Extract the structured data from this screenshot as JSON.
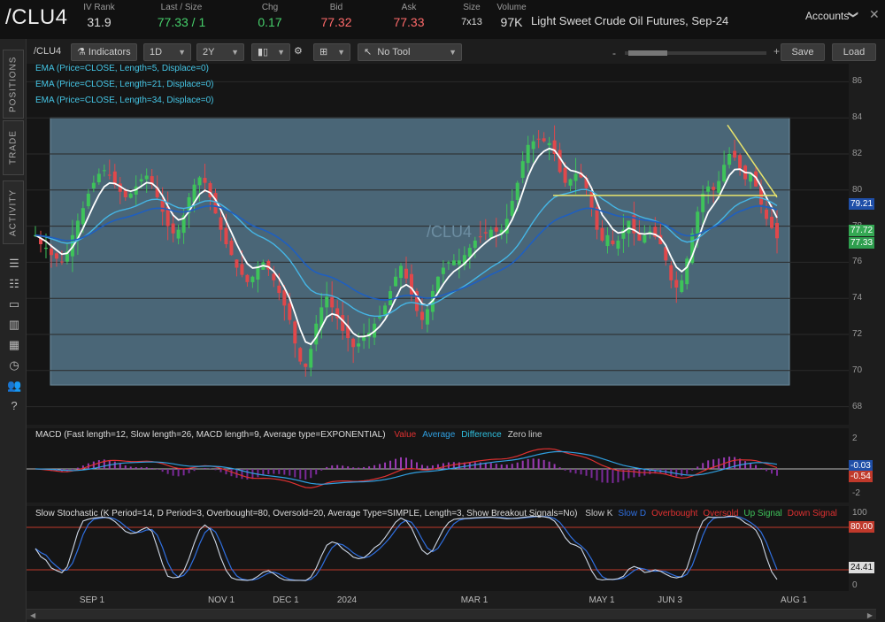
{
  "header": {
    "symbol": "/CLU4",
    "quotes": [
      {
        "label": "IV Rank",
        "value": "31.9",
        "cls": "",
        "x": 112
      },
      {
        "label": "Last / Size",
        "value": "77.33 / 1",
        "cls": "g",
        "x": 205
      },
      {
        "label": "Chg",
        "value": "0.17",
        "cls": "g",
        "x": 305
      },
      {
        "label": "Bid",
        "value": "77.32",
        "cls": "r",
        "x": 380
      },
      {
        "label": "Ask",
        "value": "77.33",
        "cls": "r",
        "x": 462
      },
      {
        "label": "Size",
        "value": "7x13",
        "cls": "s",
        "x": 533
      },
      {
        "label": "Volume",
        "value": "97K",
        "cls": "",
        "x": 578
      }
    ],
    "description": "Light Sweet Crude Oil Futures, Sep-24",
    "accounts_label": "Accounts",
    "close_glyph": "✕",
    "chevron_glyph": "❯"
  },
  "sidebar": {
    "tabs": [
      "POSITIONS",
      "TRADE",
      "ACTIVITY"
    ],
    "icons": [
      "list-icon",
      "list-lines-icon",
      "document-icon",
      "chart-icon",
      "grid-icon",
      "clock-icon",
      "people-icon",
      "help-icon"
    ],
    "icon_glyphs": [
      "☰",
      "☷",
      "▭",
      "▥",
      "▦",
      "◷",
      "👥",
      "?"
    ]
  },
  "toolbar": {
    "symbol": "/CLU4",
    "indicators": "Indicators",
    "interval": "1D",
    "range": "2Y",
    "style_glyph": "▮▯",
    "gear_glyph": "⚙",
    "draw_glyph": "⊞",
    "tool_glyph": "↖",
    "tool": "No Tool",
    "zoom_minus": "-",
    "zoom_plus": "+",
    "save": "Save",
    "load": "Load"
  },
  "price_pane": {
    "studies": [
      "EMA (Price=CLOSE, Length=5, Displace=0)",
      "EMA (Price=CLOSE, Length=21, Displace=0)",
      "EMA (Price=CLOSE, Length=34, Displace=0)"
    ],
    "watermark": "/CLU4",
    "y_ticks": [
      "86",
      "84",
      "82",
      "80",
      "78",
      "76",
      "74",
      "72",
      "70",
      "68"
    ],
    "price_plates": [
      {
        "text": "79.21",
        "color": "#1f4fa8",
        "value": 79.21
      },
      {
        "text": "77.72",
        "color": "#34a853",
        "value": 77.72
      },
      {
        "text": "77.33",
        "color": "#2e9e4e",
        "value": 77.33
      }
    ]
  },
  "macd_pane": {
    "title": "MACD (Fast length=12, Slow length=26, MACD length=9, Average type=EXPONENTIAL)",
    "legend": [
      {
        "label": "Value",
        "color": "#e03131"
      },
      {
        "label": "Average",
        "color": "#2f9fe0"
      },
      {
        "label": "Difference",
        "color": "#2fc0e0"
      },
      {
        "label": "Zero line",
        "color": "#cccccc"
      }
    ],
    "y_ticks": [
      "2",
      "0",
      "-2"
    ],
    "plates": [
      {
        "text": "-0.03",
        "color": "#1f4fa8"
      },
      {
        "text": "-0.54",
        "color": "#c0392b"
      }
    ]
  },
  "stoch_pane": {
    "title": "Slow Stochastic (K Period=14, D Period=3, Overbought=80, Oversold=20, Average Type=SIMPLE, Length=3, Show Breakout Signals=No)",
    "legend": [
      {
        "label": "Slow K",
        "color": "#cccccc"
      },
      {
        "label": "Slow D",
        "color": "#2f6fe0"
      },
      {
        "label": "Overbought",
        "color": "#e03131"
      },
      {
        "label": "Oversold",
        "color": "#e03131"
      },
      {
        "label": "Up Signal",
        "color": "#3ec35a"
      },
      {
        "label": "Down Signal",
        "color": "#e03131"
      }
    ],
    "y_ticks": [
      "100",
      "80.00",
      "20",
      "0"
    ],
    "plate": "24.41"
  },
  "x_axis": {
    "labels": [
      "SEP 1",
      "NOV 1",
      "DEC 1",
      "2024",
      "MAR 1",
      "MAY 1",
      "JUN 3",
      "AUG 1"
    ]
  },
  "chart_data": {
    "type": "candlestick",
    "symbol": "/CLU4",
    "description": "Light Sweet Crude Oil Futures, Sep-24",
    "interval": "1D",
    "range": "2Y",
    "y_range": [
      67,
      87
    ],
    "x_labels": [
      "SEP 1",
      "NOV 1",
      "DEC 1",
      "2024",
      "MAR 1",
      "MAY 1",
      "JUN 3",
      "AUG 1"
    ],
    "close_approx": [
      77.5,
      77,
      76.8,
      76.4,
      76.2,
      76.0,
      76.6,
      77.5,
      78.3,
      79.0,
      79.8,
      80.4,
      80.9,
      81.1,
      80.8,
      80.3,
      79.9,
      79.6,
      79.8,
      80.2,
      80.6,
      80.8,
      80.3,
      79.6,
      78.8,
      78.0,
      77.6,
      77.8,
      78.6,
      79.6,
      80.3,
      80.7,
      80.4,
      79.6,
      78.7,
      77.8,
      77.0,
      76.4,
      75.7,
      75.3,
      74.9,
      75.2,
      75.8,
      76.0,
      75.6,
      75.0,
      74.3,
      73.6,
      72.8,
      71.5,
      70.5,
      70.2,
      71.2,
      72.6,
      73.5,
      74.1,
      73.5,
      72.9,
      72.2,
      71.8,
      71.3,
      71.5,
      71.9,
      72.1,
      72.6,
      73.0,
      73.6,
      74.4,
      75.2,
      75.8,
      75.1,
      74.2,
      73.3,
      72.8,
      73.4,
      74.4,
      75.2,
      75.7,
      76.0,
      76.1,
      76.1,
      76.4,
      76.8,
      77.2,
      77.4,
      77.6,
      77.8,
      77.7,
      77.8,
      78.4,
      79.4,
      80.4,
      81.6,
      82.5,
      82.7,
      82.8,
      82.7,
      82.6,
      82.0,
      81.0,
      80.4,
      80.6,
      80.9,
      80.7,
      80.1,
      79.0,
      77.8,
      77.2,
      77.5,
      77.0,
      77.2,
      77.8,
      78.3,
      77.6,
      77.2,
      77.5,
      77.7,
      77.4,
      77.0,
      76.1,
      75.0,
      74.6,
      75.0,
      76.2,
      77.6,
      78.8,
      79.8,
      80.2,
      80.0,
      80.5,
      81.4,
      82.0,
      81.8,
      81.2,
      80.6,
      80.9,
      80.2,
      79.2,
      78.4,
      77.9,
      77.33
    ],
    "ema_periods": [
      5,
      21,
      34
    ],
    "resistance_line": 79.7,
    "channel_upper": [
      83.6,
      79.6
    ],
    "macd": {
      "value": -0.54,
      "average": -0.03
    },
    "stochastic": {
      "overbought": 80,
      "oversold": 20,
      "last": 24.41
    }
  }
}
